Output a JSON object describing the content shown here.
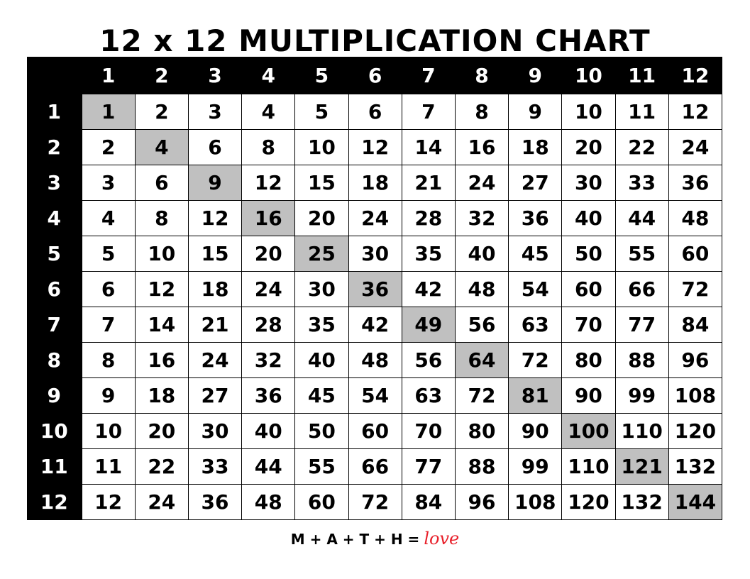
{
  "title": "12 x 12 MULTIPLICATION CHART",
  "colors": {
    "header_bg": "#000000",
    "header_text": "#ffffff",
    "diagonal_highlight": "#c0c0c0",
    "love_text": "#e8202a"
  },
  "column_headers": [
    "1",
    "2",
    "3",
    "4",
    "5",
    "6",
    "7",
    "8",
    "9",
    "10",
    "11",
    "12"
  ],
  "rows": [
    {
      "label": "1",
      "values": [
        1,
        2,
        3,
        4,
        5,
        6,
        7,
        8,
        9,
        10,
        11,
        12
      ]
    },
    {
      "label": "2",
      "values": [
        2,
        4,
        6,
        8,
        10,
        12,
        14,
        16,
        18,
        20,
        22,
        24
      ]
    },
    {
      "label": "3",
      "values": [
        3,
        6,
        9,
        12,
        15,
        18,
        21,
        24,
        27,
        30,
        33,
        36
      ]
    },
    {
      "label": "4",
      "values": [
        4,
        8,
        12,
        16,
        20,
        24,
        28,
        32,
        36,
        40,
        44,
        48
      ]
    },
    {
      "label": "5",
      "values": [
        5,
        10,
        15,
        20,
        25,
        30,
        35,
        40,
        45,
        50,
        55,
        60
      ]
    },
    {
      "label": "6",
      "values": [
        6,
        12,
        18,
        24,
        30,
        36,
        42,
        48,
        54,
        60,
        66,
        72
      ]
    },
    {
      "label": "7",
      "values": [
        7,
        14,
        21,
        28,
        35,
        42,
        49,
        56,
        63,
        70,
        77,
        84
      ]
    },
    {
      "label": "8",
      "values": [
        8,
        16,
        24,
        32,
        40,
        48,
        56,
        64,
        72,
        80,
        88,
        96
      ]
    },
    {
      "label": "9",
      "values": [
        9,
        18,
        27,
        36,
        45,
        54,
        63,
        72,
        81,
        90,
        99,
        108
      ]
    },
    {
      "label": "10",
      "values": [
        10,
        20,
        30,
        40,
        50,
        60,
        70,
        80,
        90,
        100,
        110,
        120
      ]
    },
    {
      "label": "11",
      "values": [
        11,
        22,
        33,
        44,
        55,
        66,
        77,
        88,
        99,
        110,
        121,
        132
      ]
    },
    {
      "label": "12",
      "values": [
        12,
        24,
        36,
        48,
        60,
        72,
        84,
        96,
        108,
        120,
        132,
        144
      ]
    }
  ],
  "footer": {
    "equation": "M + A + T + H =",
    "love": "love"
  }
}
